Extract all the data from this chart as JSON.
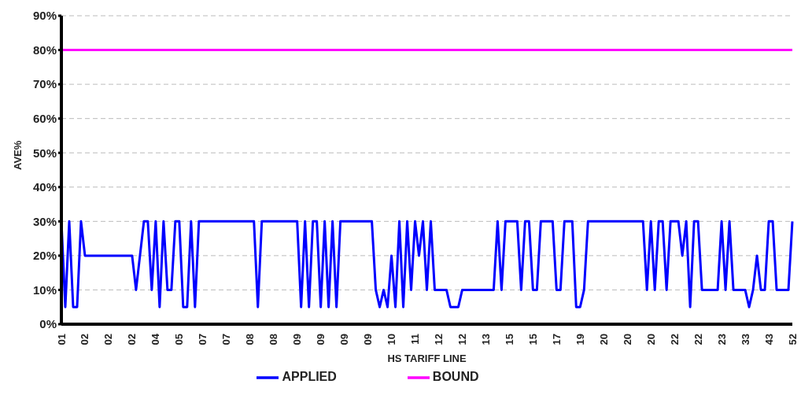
{
  "chart_data": {
    "type": "line",
    "xlabel": "HS TARIFF LINE",
    "ylabel": "AVE%",
    "categories": [
      "01",
      null,
      null,
      null,
      null,
      null,
      "02",
      null,
      null,
      null,
      null,
      null,
      "02",
      null,
      null,
      null,
      null,
      null,
      "02",
      null,
      null,
      null,
      null,
      null,
      "04",
      null,
      null,
      null,
      null,
      null,
      "05",
      null,
      null,
      null,
      null,
      null,
      "07",
      null,
      null,
      null,
      null,
      null,
      "07",
      null,
      null,
      null,
      null,
      null,
      "08",
      null,
      null,
      null,
      null,
      null,
      "08",
      null,
      null,
      null,
      null,
      null,
      "09",
      null,
      null,
      null,
      null,
      null,
      "09",
      null,
      null,
      null,
      null,
      null,
      "09",
      null,
      null,
      null,
      null,
      null,
      "09",
      null,
      null,
      null,
      null,
      null,
      "10",
      null,
      null,
      null,
      null,
      null,
      "11",
      null,
      null,
      null,
      null,
      null,
      "12",
      null,
      null,
      null,
      null,
      null,
      "12",
      null,
      null,
      null,
      null,
      null,
      "13",
      null,
      null,
      null,
      null,
      null,
      "15",
      null,
      null,
      null,
      null,
      null,
      "15",
      null,
      null,
      null,
      null,
      null,
      "17",
      null,
      null,
      null,
      null,
      null,
      "19",
      null,
      null,
      null,
      null,
      null,
      "20",
      null,
      null,
      null,
      null,
      null,
      "20",
      null,
      null,
      null,
      null,
      null,
      "20",
      null,
      null,
      null,
      null,
      null,
      "22",
      null,
      null,
      null,
      null,
      null,
      "22",
      null,
      null,
      null,
      null,
      null,
      "23",
      null,
      null,
      null,
      null,
      null,
      "33",
      null,
      null,
      null,
      null,
      null,
      "43",
      null,
      null,
      null,
      null,
      null,
      "52"
    ],
    "series": [
      {
        "name": "BOUND",
        "color": "#ff00ff",
        "values": [
          80,
          80,
          80,
          80,
          80,
          80,
          80,
          80,
          80,
          80,
          80,
          80,
          80,
          80,
          80,
          80,
          80,
          80,
          80,
          80,
          80,
          80,
          80,
          80,
          80,
          80,
          80,
          80,
          80,
          80,
          80,
          80,
          80,
          80,
          80,
          80,
          80,
          80,
          80,
          80,
          80,
          80,
          80,
          80,
          80,
          80,
          80,
          80,
          80,
          80,
          80,
          80,
          80,
          80,
          80,
          80,
          80,
          80,
          80,
          80,
          80,
          80,
          80,
          80,
          80,
          80,
          80,
          80,
          80,
          80,
          80,
          80,
          80,
          80,
          80,
          80,
          80,
          80,
          80,
          80,
          80,
          80,
          80,
          80,
          80,
          80,
          80,
          80,
          80,
          80,
          80,
          80,
          80,
          80,
          80,
          80,
          80,
          80,
          80,
          80,
          80,
          80,
          80,
          80,
          80,
          80,
          80,
          80,
          80,
          80,
          80,
          80,
          80,
          80,
          80,
          80,
          80,
          80,
          80,
          80,
          80,
          80,
          80,
          80,
          80,
          80,
          80,
          80,
          80,
          80,
          80,
          80,
          80,
          80,
          80,
          80,
          80,
          80,
          80,
          80,
          80,
          80,
          80,
          80,
          80,
          80,
          80,
          80,
          80,
          80,
          80,
          80,
          80,
          80,
          80,
          80,
          80,
          80,
          80,
          80,
          80,
          80,
          80,
          80,
          80,
          80,
          80,
          80,
          80,
          80,
          80,
          80,
          80,
          80,
          80,
          80,
          80,
          80,
          80,
          80,
          80,
          80,
          80,
          80,
          80,
          80,
          80
        ]
      },
      {
        "name": "APPLIED",
        "color": "#0000ff",
        "values": [
          30,
          5,
          30,
          5,
          5,
          30,
          20,
          20,
          20,
          20,
          20,
          20,
          20,
          20,
          20,
          20,
          20,
          20,
          20,
          10,
          20,
          30,
          30,
          10,
          30,
          5,
          30,
          10,
          10,
          30,
          30,
          5,
          5,
          30,
          5,
          30,
          30,
          30,
          30,
          30,
          30,
          30,
          30,
          30,
          30,
          30,
          30,
          30,
          30,
          30,
          5,
          30,
          30,
          30,
          30,
          30,
          30,
          30,
          30,
          30,
          30,
          5,
          30,
          5,
          30,
          30,
          5,
          30,
          5,
          30,
          5,
          30,
          30,
          30,
          30,
          30,
          30,
          30,
          30,
          30,
          10,
          5,
          10,
          5,
          20,
          5,
          30,
          5,
          30,
          10,
          30,
          20,
          30,
          10,
          30,
          10,
          10,
          10,
          10,
          5,
          5,
          5,
          10,
          10,
          10,
          10,
          10,
          10,
          10,
          10,
          10,
          30,
          10,
          30,
          30,
          30,
          30,
          10,
          30,
          30,
          10,
          10,
          30,
          30,
          30,
          30,
          10,
          10,
          30,
          30,
          30,
          5,
          5,
          10,
          30,
          30,
          30,
          30,
          30,
          30,
          30,
          30,
          30,
          30,
          30,
          30,
          30,
          30,
          30,
          10,
          30,
          10,
          30,
          30,
          10,
          30,
          30,
          30,
          20,
          30,
          5,
          30,
          30,
          10,
          10,
          10,
          10,
          10,
          30,
          10,
          30,
          10,
          10,
          10,
          10,
          5,
          10,
          20,
          10,
          10,
          30,
          30,
          10,
          10,
          10,
          10,
          30
        ]
      }
    ],
    "ylim": [
      0,
      90
    ],
    "yticks": [
      {
        "value": 0,
        "label": "0%"
      },
      {
        "value": 10,
        "label": "10%"
      },
      {
        "value": 20,
        "label": "20%"
      },
      {
        "value": 30,
        "label": "30%"
      },
      {
        "value": 40,
        "label": "40%"
      },
      {
        "value": 50,
        "label": "50%"
      },
      {
        "value": 60,
        "label": "60%"
      },
      {
        "value": 70,
        "label": "70%"
      },
      {
        "value": 80,
        "label": "80%"
      },
      {
        "value": 90,
        "label": "90%"
      }
    ],
    "grid": "y",
    "legend": "bottom",
    "marker": "none",
    "line_style": "solid"
  }
}
